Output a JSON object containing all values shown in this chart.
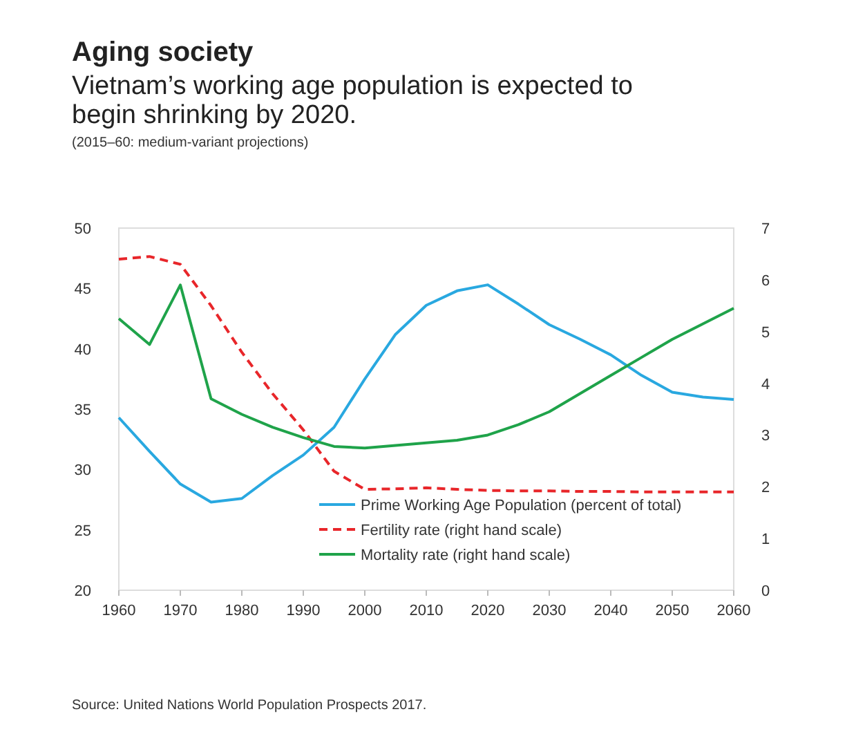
{
  "chart_data": {
    "type": "line",
    "title": "Aging society",
    "subtitle": "Vietnam’s working age population is expected to begin shrinking by 2020.",
    "annotations": [
      "(2015–60: medium-variant projections)",
      "Source: United Nations World Population Prospects 2017."
    ],
    "x": [
      1960,
      1965,
      1970,
      1975,
      1980,
      1985,
      1990,
      1995,
      2000,
      2005,
      2010,
      2015,
      2020,
      2025,
      2030,
      2035,
      2040,
      2045,
      2050,
      2055,
      2060
    ],
    "xlim": [
      1960,
      2060
    ],
    "xticks": [
      1960,
      1970,
      1980,
      1990,
      2000,
      2010,
      2020,
      2030,
      2040,
      2050,
      2060
    ],
    "ylim": [
      20,
      50
    ],
    "yticks": [
      20,
      25,
      30,
      35,
      40,
      45,
      50
    ],
    "y2lim": [
      0,
      7
    ],
    "y2ticks": [
      0,
      1,
      2,
      3,
      4,
      5,
      6,
      7
    ],
    "legend": "bottom right",
    "grid": false,
    "series": [
      {
        "name": "Prime Working Age Population (percent of total)",
        "color": "#29a8e0",
        "line_style": "solid",
        "values": [
          34.3,
          31.5,
          28.8,
          27.3,
          27.6,
          29.5,
          31.2,
          33.5,
          37.5,
          41.2,
          43.6,
          44.8,
          45.3,
          43.7,
          42.0,
          40.8,
          39.5,
          37.8,
          36.4,
          36.0,
          35.8
        ]
      },
      {
        "name": "Fertility rate (right hand scale)",
        "color": "#e8262a",
        "line_style": "dashed",
        "axis": "y2",
        "values": [
          6.4,
          6.45,
          6.3,
          5.5,
          4.6,
          3.8,
          3.1,
          2.3,
          1.95,
          1.96,
          1.98,
          1.95,
          1.93,
          1.92,
          1.92,
          1.91,
          1.91,
          1.9,
          1.9,
          1.9,
          1.9
        ]
      },
      {
        "name": "Mortality rate (right hand scale)",
        "color": "#1fa34a",
        "line_style": "solid",
        "axis": "y2",
        "values": [
          5.25,
          4.75,
          5.9,
          3.7,
          3.4,
          3.15,
          2.95,
          2.78,
          2.75,
          2.8,
          2.85,
          2.9,
          3.0,
          3.2,
          3.45,
          3.8,
          4.15,
          4.5,
          4.85,
          5.15,
          5.45
        ]
      }
    ]
  }
}
